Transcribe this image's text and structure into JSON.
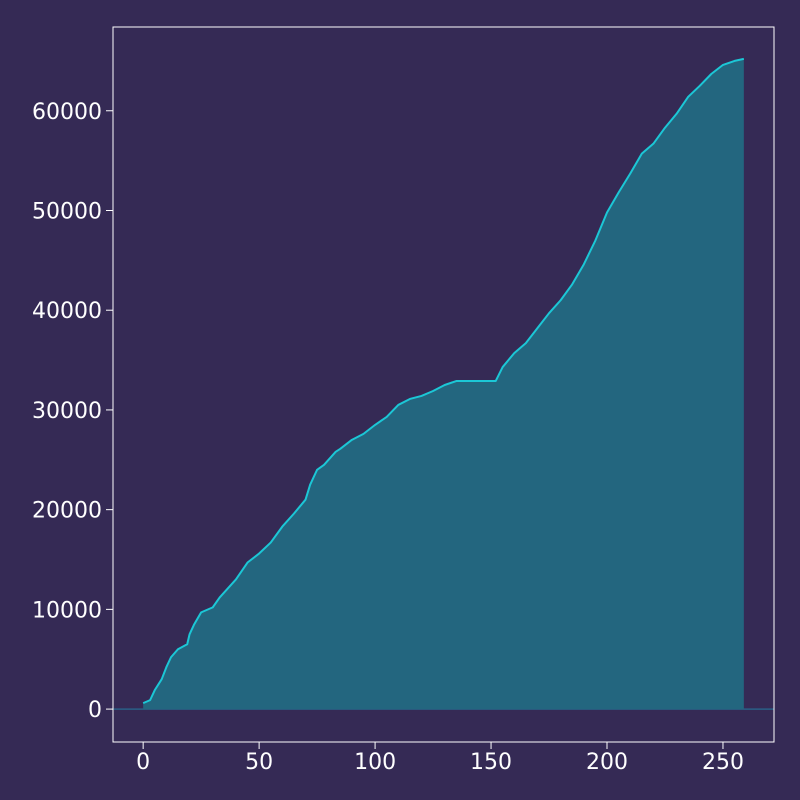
{
  "colors": {
    "background": "#352a55",
    "frame": "#ffffff",
    "line": "#1cc7d6",
    "fill": "#23667f",
    "baseline": "#2a5f86",
    "tick_text": "#ffffff"
  },
  "chart_data": {
    "type": "area",
    "title": "",
    "xlabel": "",
    "ylabel": "",
    "grid": false,
    "legend": "none",
    "xlim": [
      -13,
      272
    ],
    "ylim": [
      -3300,
      68400
    ],
    "x_ticks": [
      0,
      50,
      100,
      150,
      200,
      250
    ],
    "y_ticks": [
      0,
      10000,
      20000,
      30000,
      40000,
      50000,
      60000
    ],
    "x_tick_labels": [
      "0",
      "50",
      "100",
      "150",
      "200",
      "250"
    ],
    "y_tick_labels": [
      "0",
      "10000",
      "20000",
      "30000",
      "40000",
      "50000",
      "60000"
    ],
    "series": [
      {
        "x": [
          0,
          3,
          5,
          8,
          10,
          12,
          15,
          19,
          20,
          22,
          25,
          30,
          33,
          40,
          45,
          50,
          55,
          60,
          65,
          70,
          72,
          75,
          78,
          83,
          85,
          90,
          95,
          100,
          105,
          110,
          115,
          120,
          125,
          130,
          135,
          140,
          145,
          152,
          155,
          160,
          165,
          170,
          175,
          180,
          185,
          190,
          195,
          200,
          205,
          210,
          215,
          220,
          225,
          230,
          235,
          240,
          245,
          250,
          255,
          259
        ],
        "y": [
          600,
          900,
          1900,
          3000,
          4200,
          5200,
          6000,
          6500,
          7500,
          8500,
          9700,
          10200,
          11200,
          13000,
          14700,
          15600,
          16700,
          18300,
          19600,
          21000,
          22500,
          24000,
          24500,
          25800,
          26100,
          27000,
          27600,
          28500,
          29300,
          30500,
          31100,
          31400,
          31900,
          32500,
          32900,
          32900,
          32900,
          32900,
          34300,
          35700,
          36700,
          38200,
          39700,
          41000,
          42600,
          44600,
          47000,
          49800,
          51800,
          53700,
          55700,
          56700,
          58300,
          59700,
          61400,
          62500,
          63700,
          64600,
          65000,
          65200
        ]
      }
    ]
  }
}
